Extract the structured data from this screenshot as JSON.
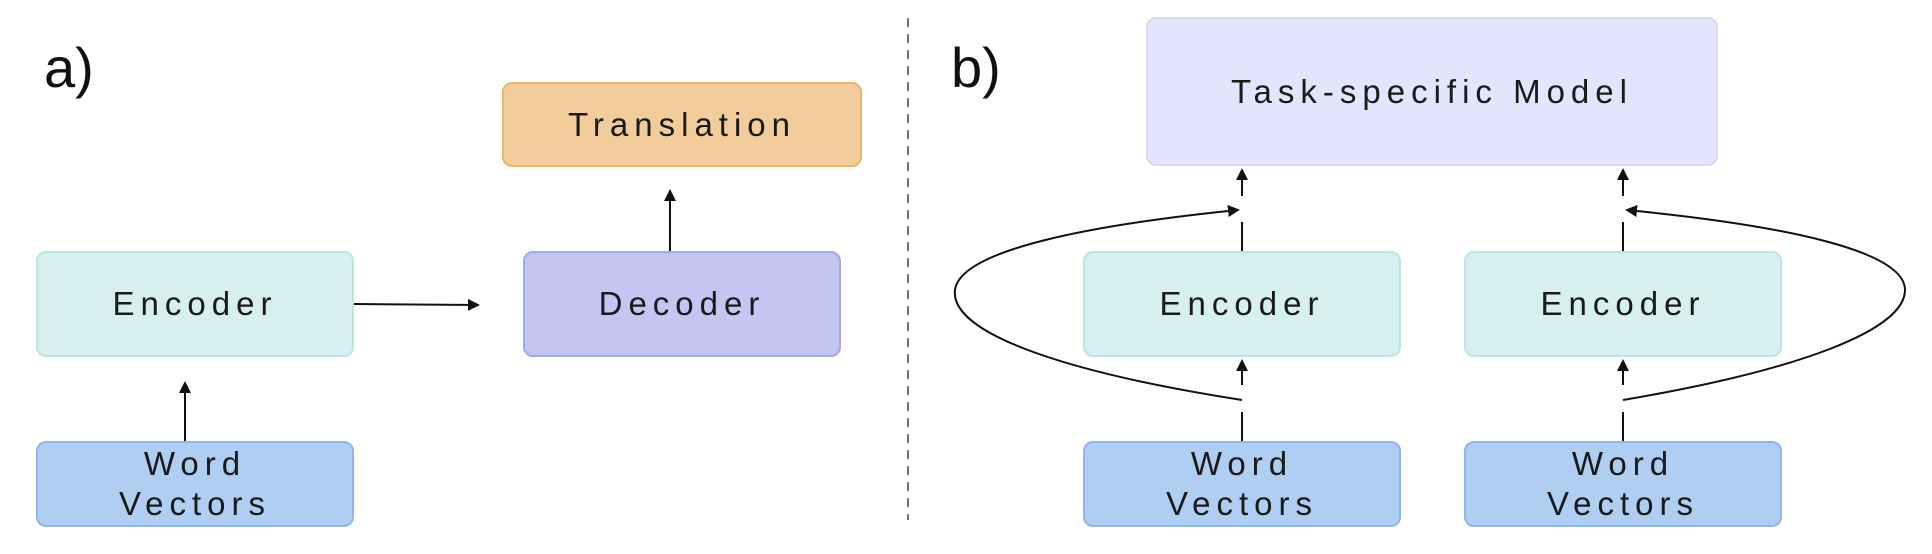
{
  "panels": {
    "a": {
      "label": "a)",
      "encoder": "Encoder",
      "decoder": "Decoder",
      "translation": "Translation",
      "word_vectors": "Word\nVectors"
    },
    "b": {
      "label": "b)",
      "task_model": "Task-specific Model",
      "encoders": [
        "Encoder",
        "Encoder"
      ],
      "word_vectors": [
        "Word\nVectors",
        "Word\nVectors"
      ]
    }
  },
  "colors": {
    "encoder_fill": "#d5f0ee",
    "encoder_border": "#b8e6e2",
    "decoder_fill": "#c3c6f0",
    "decoder_border": "#a5a9e6",
    "translation_fill": "#f2cd9a",
    "translation_border": "#e8b766",
    "word_vectors_fill": "#b0cdf2",
    "word_vectors_border": "#8fb5ec",
    "task_model_fill": "#e4e5fc",
    "task_model_border": "#d8d9f8",
    "arrow": "#111111",
    "divider": "#777777"
  }
}
